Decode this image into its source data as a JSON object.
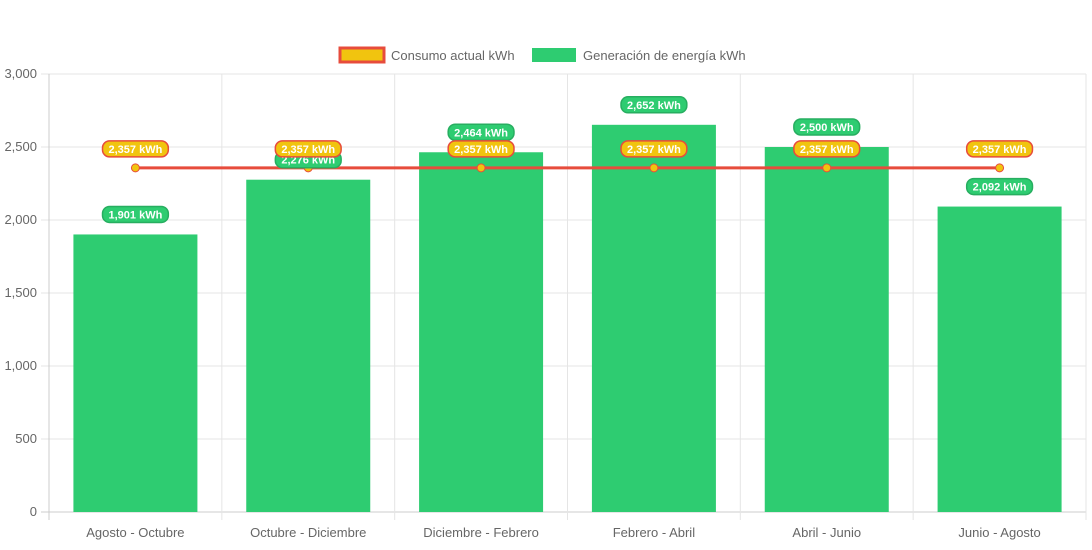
{
  "chart_data": {
    "type": "bar",
    "categories": [
      "Agosto - Octubre",
      "Octubre - Diciembre",
      "Diciembre - Febrero",
      "Febrero - Abril",
      "Abril - Junio",
      "Junio - Agosto"
    ],
    "series": [
      {
        "name": "Consumo actual kWh",
        "type": "line",
        "values": [
          2357,
          2357,
          2357,
          2357,
          2357,
          2357
        ],
        "labels": [
          "2,357 kWh",
          "2,357 kWh",
          "2,357 kWh",
          "2,357 kWh",
          "2,357 kWh",
          "2,357 kWh"
        ],
        "color": "#e74c3c",
        "fill": "#f1c40f"
      },
      {
        "name": "Generación de energía kWh",
        "type": "bar",
        "values": [
          1901,
          2276,
          2464,
          2652,
          2500,
          2092
        ],
        "labels": [
          "1,901 kWh",
          "2,276 kWh",
          "2,464 kWh",
          "2,652 kWh",
          "2,500 kWh",
          "2,092 kWh"
        ],
        "color": "#2ecc71"
      }
    ],
    "yticks": [
      "0",
      "500",
      "1,000",
      "1,500",
      "2,000",
      "2,500",
      "3,000"
    ],
    "ylim": [
      0,
      3000
    ],
    "grid": true,
    "legend": "top"
  }
}
